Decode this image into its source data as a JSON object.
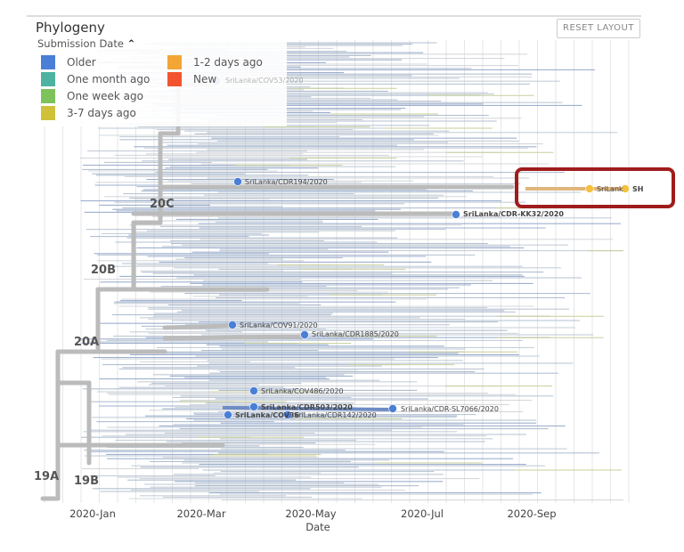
{
  "panel": {
    "title": "Phylogeny",
    "reset_label": "RESET LAYOUT"
  },
  "legend": {
    "header": "Submission Date",
    "toggle_icon": "chevron-up-icon",
    "items": [
      {
        "label": "Older",
        "color": "#4a7fd8"
      },
      {
        "label": "One month ago",
        "color": "#4db3a0"
      },
      {
        "label": "One week ago",
        "color": "#7dc25a"
      },
      {
        "label": "3-7 days ago",
        "color": "#cfc23a"
      },
      {
        "label": "1-2 days ago",
        "color": "#f3a536"
      },
      {
        "label": "New",
        "color": "#f25430"
      }
    ]
  },
  "clades": [
    "19A",
    "19B",
    "20A",
    "20B",
    "20C"
  ],
  "axis": {
    "ticks": [
      "2020-Jan",
      "2020-Mar",
      "2020-May",
      "2020-Jul",
      "2020-Sep"
    ],
    "label": "Date"
  },
  "tips": [
    {
      "label": "SriLanka/COV53/2020",
      "color": "#4a7fd8"
    },
    {
      "label": "SriLanka/CDR194/2020",
      "color": "#4a7fd8"
    },
    {
      "label": "SriLanka/CDR-KK32/2020",
      "color": "#4a7fd8"
    },
    {
      "label": "SriLanka/COV91/2020",
      "color": "#4a7fd8"
    },
    {
      "label": "SriLanka/CDR1885/2020",
      "color": "#4a7fd8"
    },
    {
      "label": "SriLanka/COV486/2020",
      "color": "#4a7fd8"
    },
    {
      "label": "SriLanka/CDR503/2020",
      "color": "#4a7fd8"
    },
    {
      "label": "SriLanka/CDR-SL7066/2020",
      "color": "#4a7fd8"
    },
    {
      "label": "SriLanka/COV36",
      "color": "#4a7fd8"
    },
    {
      "label": "SriLanka/CDR142/2020",
      "color": "#4a7fd8"
    },
    {
      "label": "SriLank",
      "color": "#f3c040"
    },
    {
      "label": "SH",
      "color": "#f3c040"
    }
  ],
  "highlight_color": "#a01c1c"
}
